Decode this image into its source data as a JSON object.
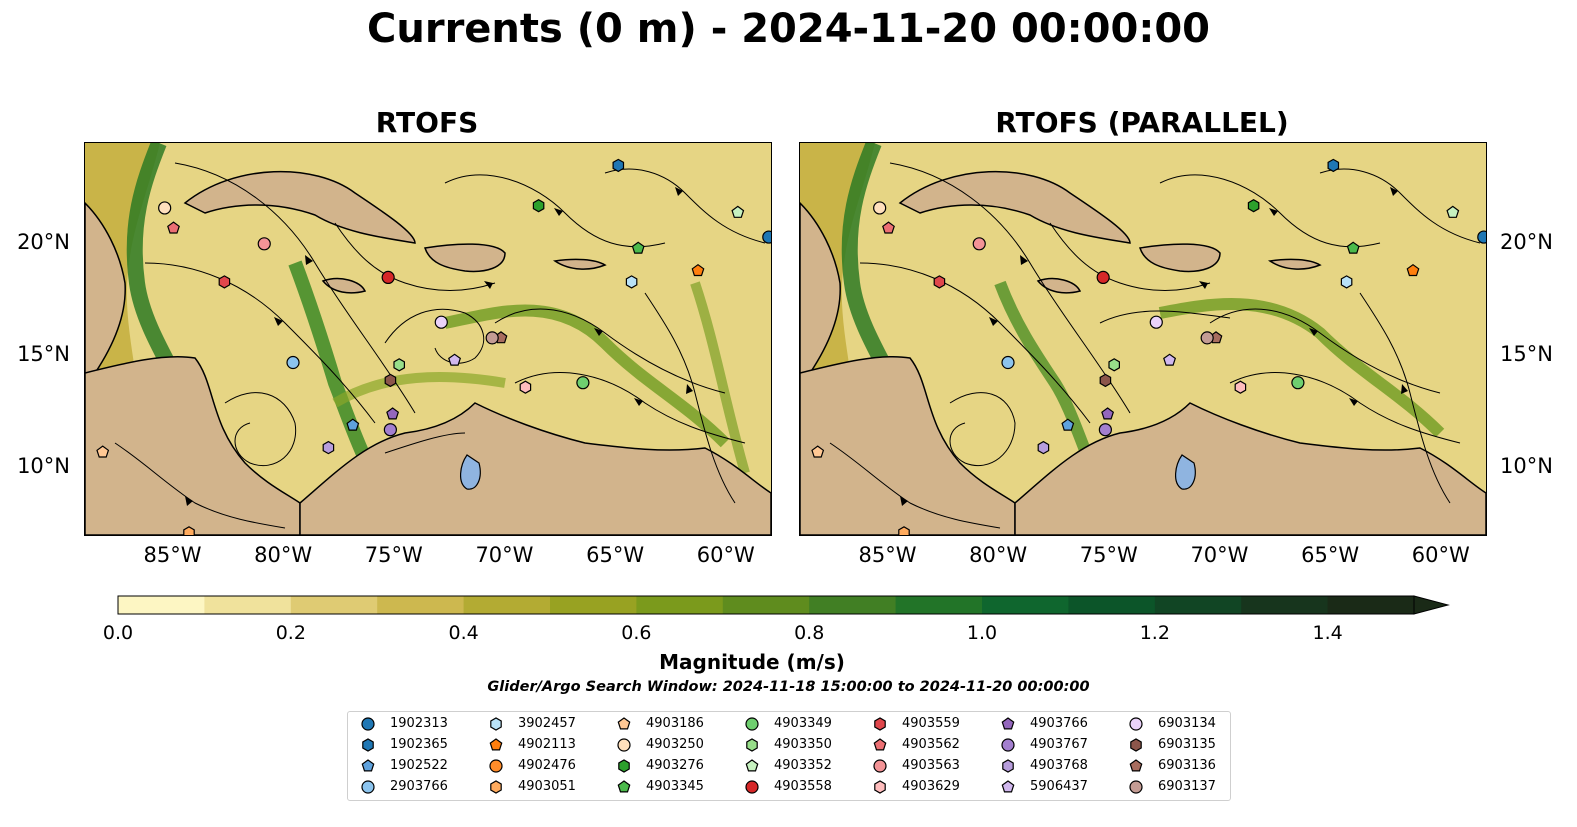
{
  "title": "Currents (0 m) - 2024-11-20 00:00:00",
  "panels": [
    {
      "title": "RTOFS"
    },
    {
      "title": "RTOFS (PARALLEL)"
    }
  ],
  "axes": {
    "lon_ticks": [
      "85°W",
      "80°W",
      "75°W",
      "70°W",
      "65°W",
      "60°W"
    ],
    "lat_ticks": [
      "20°N",
      "15°N",
      "10°N"
    ]
  },
  "colorbar": {
    "label": "Magnitude (m/s)",
    "ticks": [
      "0.0",
      "0.2",
      "0.4",
      "0.6",
      "0.8",
      "1.0",
      "1.2",
      "1.4"
    ],
    "range": [
      0,
      1.5
    ],
    "colors": [
      "#fdf6c3",
      "#f0e29c",
      "#dfcb73",
      "#cdb84f",
      "#b3ab33",
      "#98a222",
      "#7b9a1c",
      "#5f8c1e",
      "#417f24",
      "#227428",
      "#0f662e",
      "#0c5529",
      "#114524",
      "#17351d",
      "#1a2a17"
    ]
  },
  "search_window": "Glider/Argo Search Window: 2024-11-18 15:00:00 to 2024-11-20 00:00:00",
  "legend": [
    {
      "id": "1902313",
      "marker": "circle",
      "color": "#1f77b4"
    },
    {
      "id": "1902365",
      "marker": "hexagon",
      "color": "#1f77b4"
    },
    {
      "id": "1902522",
      "marker": "pentagon",
      "color": "#5fa2dd"
    },
    {
      "id": "2903766",
      "marker": "circle",
      "color": "#8cc4ee"
    },
    {
      "id": "3902457",
      "marker": "hexagon",
      "color": "#b9e2f7"
    },
    {
      "id": "4902113",
      "marker": "pentagon",
      "color": "#ff7f0e"
    },
    {
      "id": "4902476",
      "marker": "circle",
      "color": "#ff8c2a"
    },
    {
      "id": "4903051",
      "marker": "hexagon",
      "color": "#ffab5e"
    },
    {
      "id": "4903186",
      "marker": "pentagon",
      "color": "#ffc894"
    },
    {
      "id": "4903250",
      "marker": "circle",
      "color": "#ffe0bd"
    },
    {
      "id": "4903276",
      "marker": "hexagon",
      "color": "#2ca02c"
    },
    {
      "id": "4903345",
      "marker": "pentagon",
      "color": "#4cba4c"
    },
    {
      "id": "4903349",
      "marker": "circle",
      "color": "#6fcf6f"
    },
    {
      "id": "4903350",
      "marker": "hexagon",
      "color": "#98df8a"
    },
    {
      "id": "4903352",
      "marker": "pentagon",
      "color": "#c7f2c0"
    },
    {
      "id": "4903558",
      "marker": "circle",
      "color": "#d62728"
    },
    {
      "id": "4903559",
      "marker": "hexagon",
      "color": "#e0474c"
    },
    {
      "id": "4903562",
      "marker": "pentagon",
      "color": "#ec6f73"
    },
    {
      "id": "4903563",
      "marker": "circle",
      "color": "#f39396"
    },
    {
      "id": "4903629",
      "marker": "hexagon",
      "color": "#ffbdbd"
    },
    {
      "id": "4903766",
      "marker": "pentagon",
      "color": "#9467bd"
    },
    {
      "id": "4903767",
      "marker": "circle",
      "color": "#a37fcf"
    },
    {
      "id": "4903768",
      "marker": "hexagon",
      "color": "#b79ddc"
    },
    {
      "id": "5906437",
      "marker": "pentagon",
      "color": "#d1b8ee"
    },
    {
      "id": "6903134",
      "marker": "circle",
      "color": "#ead2f9"
    },
    {
      "id": "6903135",
      "marker": "hexagon",
      "color": "#8c564b"
    },
    {
      "id": "6903136",
      "marker": "pentagon",
      "color": "#a86d5f"
    },
    {
      "id": "6903137",
      "marker": "circle",
      "color": "#c49c94"
    }
  ],
  "map_extent": {
    "lon": [
      -89,
      -58
    ],
    "lat": [
      7,
      24.5
    ]
  },
  "floats": [
    {
      "id": "1902313",
      "lon": -58.1,
      "lat": 20.3
    },
    {
      "id": "1902365",
      "lon": -64.9,
      "lat": 23.5
    },
    {
      "id": "1902522",
      "lon": -76.9,
      "lat": 11.9
    },
    {
      "id": "2903766",
      "lon": -79.6,
      "lat": 14.7
    },
    {
      "id": "3902457",
      "lon": -64.3,
      "lat": 18.3
    },
    {
      "id": "4902113",
      "lon": -61.3,
      "lat": 18.8
    },
    {
      "id": "4903051",
      "lon": -84.3,
      "lat": 7.1
    },
    {
      "id": "4903186",
      "lon": -88.2,
      "lat": 10.7
    },
    {
      "id": "4903250",
      "lon": -85.4,
      "lat": 21.6
    },
    {
      "id": "4903276",
      "lon": -68.5,
      "lat": 21.7
    },
    {
      "id": "4903349",
      "lon": -66.5,
      "lat": 13.8
    },
    {
      "id": "4903350",
      "lon": -74.8,
      "lat": 14.6
    },
    {
      "id": "4903352",
      "lon": -59.5,
      "lat": 21.4
    },
    {
      "id": "4903558",
      "lon": -75.3,
      "lat": 18.5
    },
    {
      "id": "4903559",
      "lon": -82.7,
      "lat": 18.3
    },
    {
      "id": "4903562",
      "lon": -85.0,
      "lat": 20.7
    },
    {
      "id": "4903563",
      "lon": -80.9,
      "lat": 20.0
    },
    {
      "id": "4903629",
      "lon": -69.1,
      "lat": 13.6
    },
    {
      "id": "4903766",
      "lon": -75.1,
      "lat": 12.4
    },
    {
      "id": "4903767",
      "lon": -75.2,
      "lat": 11.7
    },
    {
      "id": "4903768",
      "lon": -78.0,
      "lat": 10.9
    },
    {
      "id": "5906437",
      "lon": -72.3,
      "lat": 14.8
    },
    {
      "id": "6903134",
      "lon": -72.9,
      "lat": 16.5
    },
    {
      "id": "6903135",
      "lon": -75.2,
      "lat": 13.9
    },
    {
      "id": "6903136",
      "lon": -70.2,
      "lat": 15.8
    },
    {
      "id": "6903137",
      "lon": -70.6,
      "lat": 15.8
    },
    {
      "id": "4903345",
      "lon": -64.0,
      "lat": 19.8
    }
  ]
}
